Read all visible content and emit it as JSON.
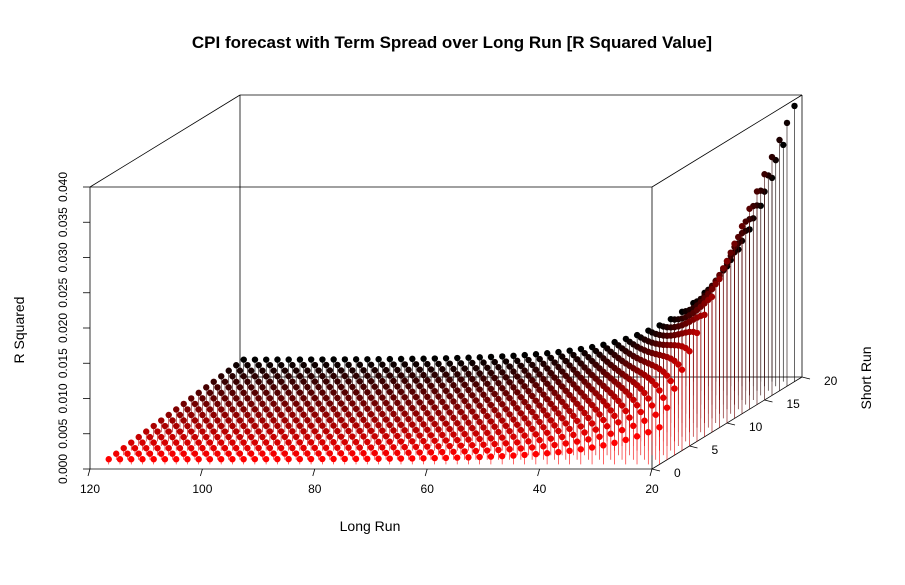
{
  "chart_data": {
    "type": "scatter",
    "subtype": "3d-scatter-with-droplines",
    "title": "CPI forecast with Term Spread over Long Run [R Squared Value]",
    "xlabel": "Long Run",
    "ylabel": "Short Run",
    "zlabel": "R Squared",
    "x_ticks": [
      "120",
      "100",
      "80",
      "60",
      "40",
      "20"
    ],
    "y_ticks": [
      "0",
      "5",
      "10",
      "15",
      "20"
    ],
    "z_ticks": [
      "0.000",
      "0.005",
      "0.010",
      "0.015",
      "0.020",
      "0.025",
      "0.030",
      "0.035",
      "0.040"
    ],
    "xlim": [
      120,
      20
    ],
    "ylim": [
      0,
      20
    ],
    "zlim": [
      0,
      0.04
    ],
    "x_range": [
      20,
      118
    ],
    "y_range": [
      1,
      19
    ],
    "z_max_observed": 0.0395,
    "color_gradient": [
      "#ff0000",
      "#000000"
    ],
    "color_by": "Short Run",
    "grid": false
  }
}
